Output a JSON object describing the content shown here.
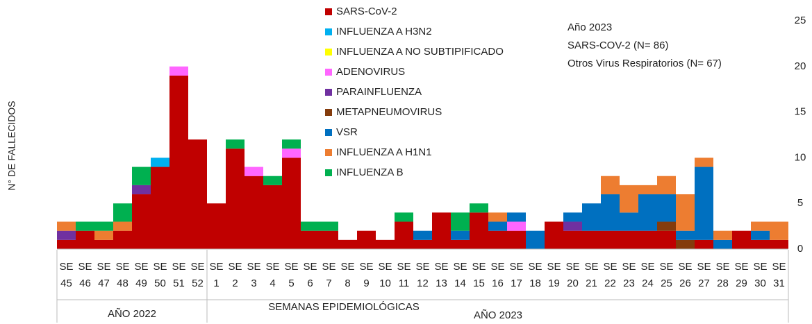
{
  "chart_data": {
    "type": "stacked-bar",
    "ylabel": "N° DE FALLECIDOS",
    "xlabel": "SEMANAS EPIDEMIOLÓGICAS",
    "x_groups": [
      "AÑO 2022",
      "AÑO 2023"
    ],
    "annotation": [
      "Año 2023",
      "SARS-COV-2 (N= 86)",
      "Otros Virus Respiratorios (N= 67)"
    ],
    "categories": [
      "SE 45",
      "SE 46",
      "SE 47",
      "SE 48",
      "SE 49",
      "SE 50",
      "SE 51",
      "SE 52",
      "SE 1",
      "SE 2",
      "SE 3",
      "SE 4",
      "SE 5",
      "SE 6",
      "SE 7",
      "SE 8",
      "SE 9",
      "SE 10",
      "SE 11",
      "SE 12",
      "SE 13",
      "SE 14",
      "SE 15",
      "SE 16",
      "SE 17",
      "SE 18",
      "SE 19",
      "SE 20",
      "SE 21",
      "SE 22",
      "SE 23",
      "SE 24",
      "SE 25",
      "SE 26",
      "SE 27",
      "SE 28",
      "SE 29",
      "SE 30",
      "SE 31"
    ],
    "series": [
      {
        "name": "SARS-CoV-2",
        "color": "#c00000",
        "values": [
          1,
          2,
          1,
          2,
          6,
          9,
          19,
          12,
          5,
          11,
          8,
          7,
          10,
          2,
          2,
          1,
          2,
          1,
          3,
          1,
          4,
          1,
          4,
          2,
          2,
          0,
          3,
          2,
          2,
          2,
          2,
          2,
          2,
          0,
          1,
          0,
          2,
          1,
          1
        ]
      },
      {
        "name": "INFLUENZA A H3N2",
        "color": "#00b0f0",
        "values": [
          0,
          0,
          0,
          0,
          0,
          1,
          0,
          0,
          0,
          0,
          0,
          0,
          0,
          0,
          0,
          0,
          0,
          0,
          0,
          0,
          0,
          0,
          0,
          0,
          0,
          0,
          0,
          0,
          0,
          0,
          0,
          0,
          0,
          0,
          0,
          0,
          0,
          0,
          0
        ]
      },
      {
        "name": "INFLUENZA A NO SUBTIPIFICADO",
        "color": "#ffff00",
        "values": [
          0,
          0,
          0,
          0,
          0,
          0,
          0,
          0,
          0,
          0,
          0,
          0,
          0,
          0,
          0,
          0,
          0,
          0,
          0,
          0,
          0,
          0,
          0,
          0,
          0,
          0,
          0,
          0,
          0,
          0,
          0,
          0,
          0,
          0,
          0,
          0,
          0,
          0,
          0
        ]
      },
      {
        "name": "ADENOVIRUS",
        "color": "#ff66ff",
        "values": [
          0,
          0,
          0,
          0,
          0,
          0,
          1,
          0,
          0,
          0,
          1,
          0,
          1,
          0,
          0,
          0,
          0,
          0,
          0,
          0,
          0,
          0,
          0,
          0,
          1,
          0,
          0,
          0,
          0,
          0,
          0,
          0,
          0,
          0,
          0,
          0,
          0,
          0,
          0
        ]
      },
      {
        "name": "PARAINFLUENZA",
        "color": "#7030a0",
        "values": [
          1,
          0,
          0,
          0,
          1,
          0,
          0,
          0,
          0,
          0,
          0,
          0,
          0,
          0,
          0,
          0,
          0,
          0,
          0,
          0,
          0,
          0,
          0,
          0,
          0,
          0,
          0,
          1,
          0,
          0,
          0,
          0,
          0,
          0,
          0,
          0,
          0,
          0,
          0
        ]
      },
      {
        "name": "METAPNEUMOVIRUS",
        "color": "#843c0c",
        "values": [
          0,
          0,
          0,
          0,
          0,
          0,
          0,
          0,
          0,
          0,
          0,
          0,
          0,
          0,
          0,
          0,
          0,
          0,
          0,
          0,
          0,
          0,
          0,
          0,
          0,
          0,
          0,
          0,
          0,
          0,
          0,
          0,
          1,
          1,
          0,
          0,
          0,
          0,
          0
        ]
      },
      {
        "name": "VSR",
        "color": "#0070c0",
        "values": [
          0,
          0,
          0,
          0,
          0,
          0,
          0,
          0,
          0,
          0,
          0,
          0,
          0,
          0,
          0,
          0,
          0,
          0,
          0,
          1,
          0,
          1,
          0,
          1,
          1,
          2,
          0,
          1,
          3,
          4,
          2,
          4,
          3,
          1,
          8,
          1,
          0,
          1,
          0
        ]
      },
      {
        "name": "INFLUENZA A H1N1",
        "color": "#ed7d31",
        "values": [
          1,
          0,
          1,
          1,
          0,
          0,
          0,
          0,
          0,
          0,
          0,
          0,
          0,
          0,
          0,
          0,
          0,
          0,
          0,
          0,
          0,
          0,
          0,
          1,
          0,
          0,
          0,
          0,
          0,
          2,
          3,
          1,
          2,
          4,
          1,
          1,
          0,
          1,
          2
        ]
      },
      {
        "name": "INFLUENZA B",
        "color": "#00b050",
        "values": [
          0,
          1,
          1,
          2,
          2,
          0,
          0,
          0,
          0,
          1,
          0,
          1,
          1,
          1,
          1,
          0,
          0,
          0,
          1,
          0,
          0,
          2,
          1,
          0,
          0,
          0,
          0,
          0,
          0,
          0,
          0,
          0,
          0,
          0,
          0,
          0,
          0,
          0,
          0
        ]
      }
    ],
    "ylim": [
      0,
      25
    ],
    "yticks": [
      0,
      5,
      10,
      15,
      20,
      25
    ],
    "grid": false
  }
}
